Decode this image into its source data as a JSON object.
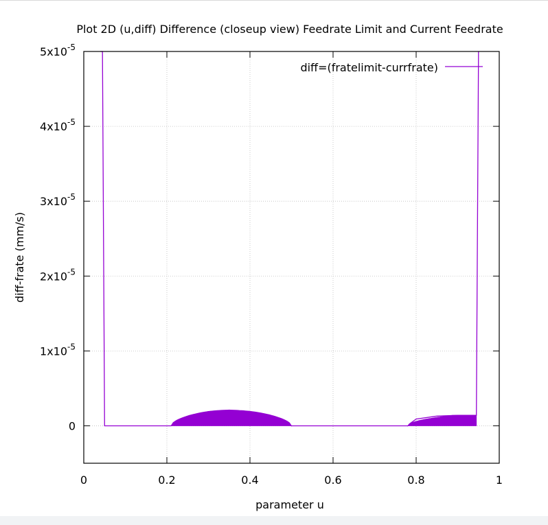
{
  "chart_data": {
    "type": "line",
    "title": "Plot 2D (u,diff) Difference (closeup view) Feedrate Limit and Current Feedrate",
    "xlabel": "parameter u",
    "ylabel": "diff-frate (mm/s)",
    "xlim": [
      0,
      1
    ],
    "ylim": [
      -5e-06,
      5e-05
    ],
    "x_ticks": [
      {
        "value": 0,
        "label": "0"
      },
      {
        "value": 0.2,
        "label": "0.2"
      },
      {
        "value": 0.4,
        "label": "0.4"
      },
      {
        "value": 0.6,
        "label": "0.6"
      },
      {
        "value": 0.8,
        "label": "0.8"
      },
      {
        "value": 1,
        "label": "1"
      }
    ],
    "y_ticks": [
      {
        "value": 0,
        "mantissa": "0",
        "exponent": ""
      },
      {
        "value": 1e-05,
        "mantissa": "1x10",
        "exponent": "-5"
      },
      {
        "value": 2e-05,
        "mantissa": "2x10",
        "exponent": "-5"
      },
      {
        "value": 3e-05,
        "mantissa": "3x10",
        "exponent": "-5"
      },
      {
        "value": 4e-05,
        "mantissa": "4x10",
        "exponent": "-5"
      },
      {
        "value": 5e-05,
        "mantissa": "5x10",
        "exponent": "-5"
      }
    ],
    "grid": true,
    "legend_position": "top-right",
    "series": [
      {
        "name": "diff=(fratelimit-currfrate)",
        "color": "#9400d3",
        "x": [
          0.04,
          0.045,
          0.05,
          0.21,
          0.215,
          0.25,
          0.3,
          0.35,
          0.4,
          0.45,
          0.49,
          0.5,
          0.78,
          0.785,
          0.8,
          0.85,
          0.9,
          0.94,
          0.945,
          0.95
        ],
        "y": [
          5e-05,
          5e-05,
          0,
          0,
          3e-07,
          1.2e-06,
          1.9e-06,
          2.1e-06,
          1.9e-06,
          1.3e-06,
          4e-07,
          0,
          0,
          3e-07,
          9e-07,
          1.3e-06,
          1.4e-06,
          1.4e-06,
          1.4e-06,
          5e-05
        ]
      }
    ],
    "oscillation_bands": [
      {
        "x_start": 0.21,
        "x_end": 0.5,
        "y_peak": 2.1e-06,
        "peak_at": 0.35,
        "shape": "dome"
      },
      {
        "x_start": 0.78,
        "x_end": 0.945,
        "y_peak": 1.4e-06,
        "peak_at": 0.9,
        "shape": "plateau"
      }
    ]
  }
}
